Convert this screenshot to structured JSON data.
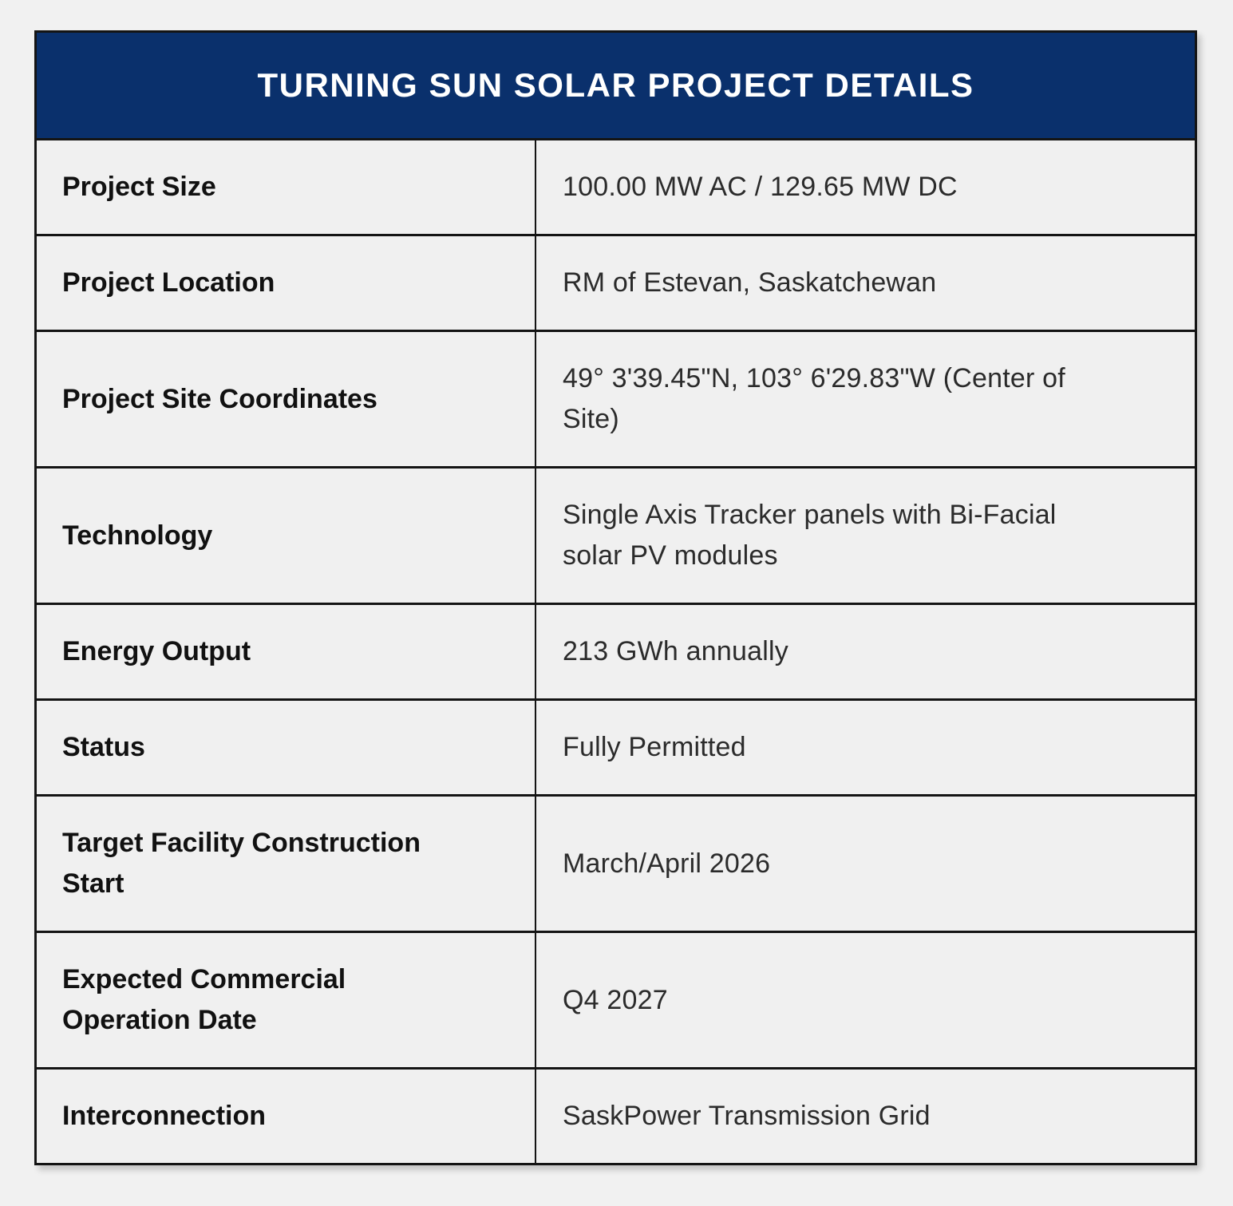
{
  "title": "TURNING SUN SOLAR PROJECT DETAILS",
  "rows": [
    {
      "label": "Project Size",
      "value": "100.00 MW AC / 129.65 MW DC"
    },
    {
      "label": "Project Location",
      "value": "RM of Estevan, Saskatchewan"
    },
    {
      "label": "Project Site Coordinates",
      "value": "49° 3'39.45\"N, 103° 6'29.83\"W (Center of Site)"
    },
    {
      "label": "Technology",
      "value": "Single Axis Tracker panels with Bi-Facial solar PV modules"
    },
    {
      "label": "Energy Output",
      "value": "213 GWh annually"
    },
    {
      "label": "Status",
      "value": "Fully Permitted"
    },
    {
      "label": "Target Facility Construction Start",
      "value": "March/April 2026"
    },
    {
      "label": "Expected Commercial Operation Date",
      "value": "Q4 2027"
    },
    {
      "label": "Interconnection",
      "value": "SaskPower Transmission Grid"
    }
  ],
  "colors": {
    "header_bg": "#0a306c",
    "header_text": "#ffffff",
    "page_bg": "#f1f1f1",
    "cell_bg": "#f0f0f0",
    "border": "#141414",
    "label_text": "#111111",
    "value_text": "#2b2b2b"
  }
}
